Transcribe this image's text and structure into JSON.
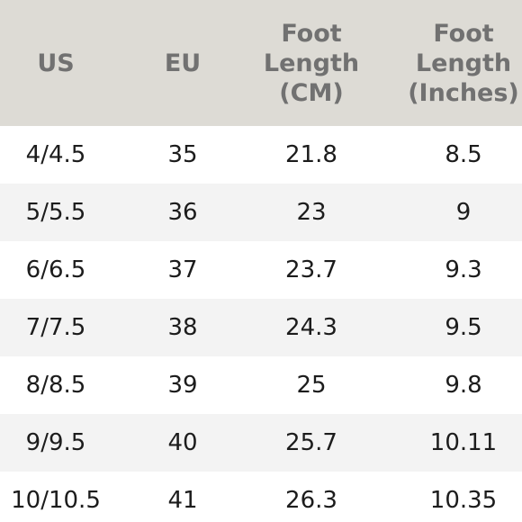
{
  "table": {
    "headers": [
      "US",
      "EU",
      "Foot\nLength\n(CM)",
      "Foot\nLength\n(Inches)"
    ],
    "rows": [
      [
        "4/4.5",
        "35",
        "21.8",
        "8.5"
      ],
      [
        "5/5.5",
        "36",
        "23",
        "9"
      ],
      [
        "6/6.5",
        "37",
        "23.7",
        "9.3"
      ],
      [
        "7/7.5",
        "38",
        "24.3",
        "9.5"
      ],
      [
        "8/8.5",
        "39",
        "25",
        "9.8"
      ],
      [
        "9/9.5",
        "40",
        "25.7",
        "10.11"
      ],
      [
        "10/10.5",
        "41",
        "26.3",
        "10.35"
      ]
    ]
  },
  "colors": {
    "header_background": "#dddbd5",
    "header_text": "#717171",
    "stripe_background": "#f3f3f3",
    "body_text": "#1c1c1c"
  }
}
